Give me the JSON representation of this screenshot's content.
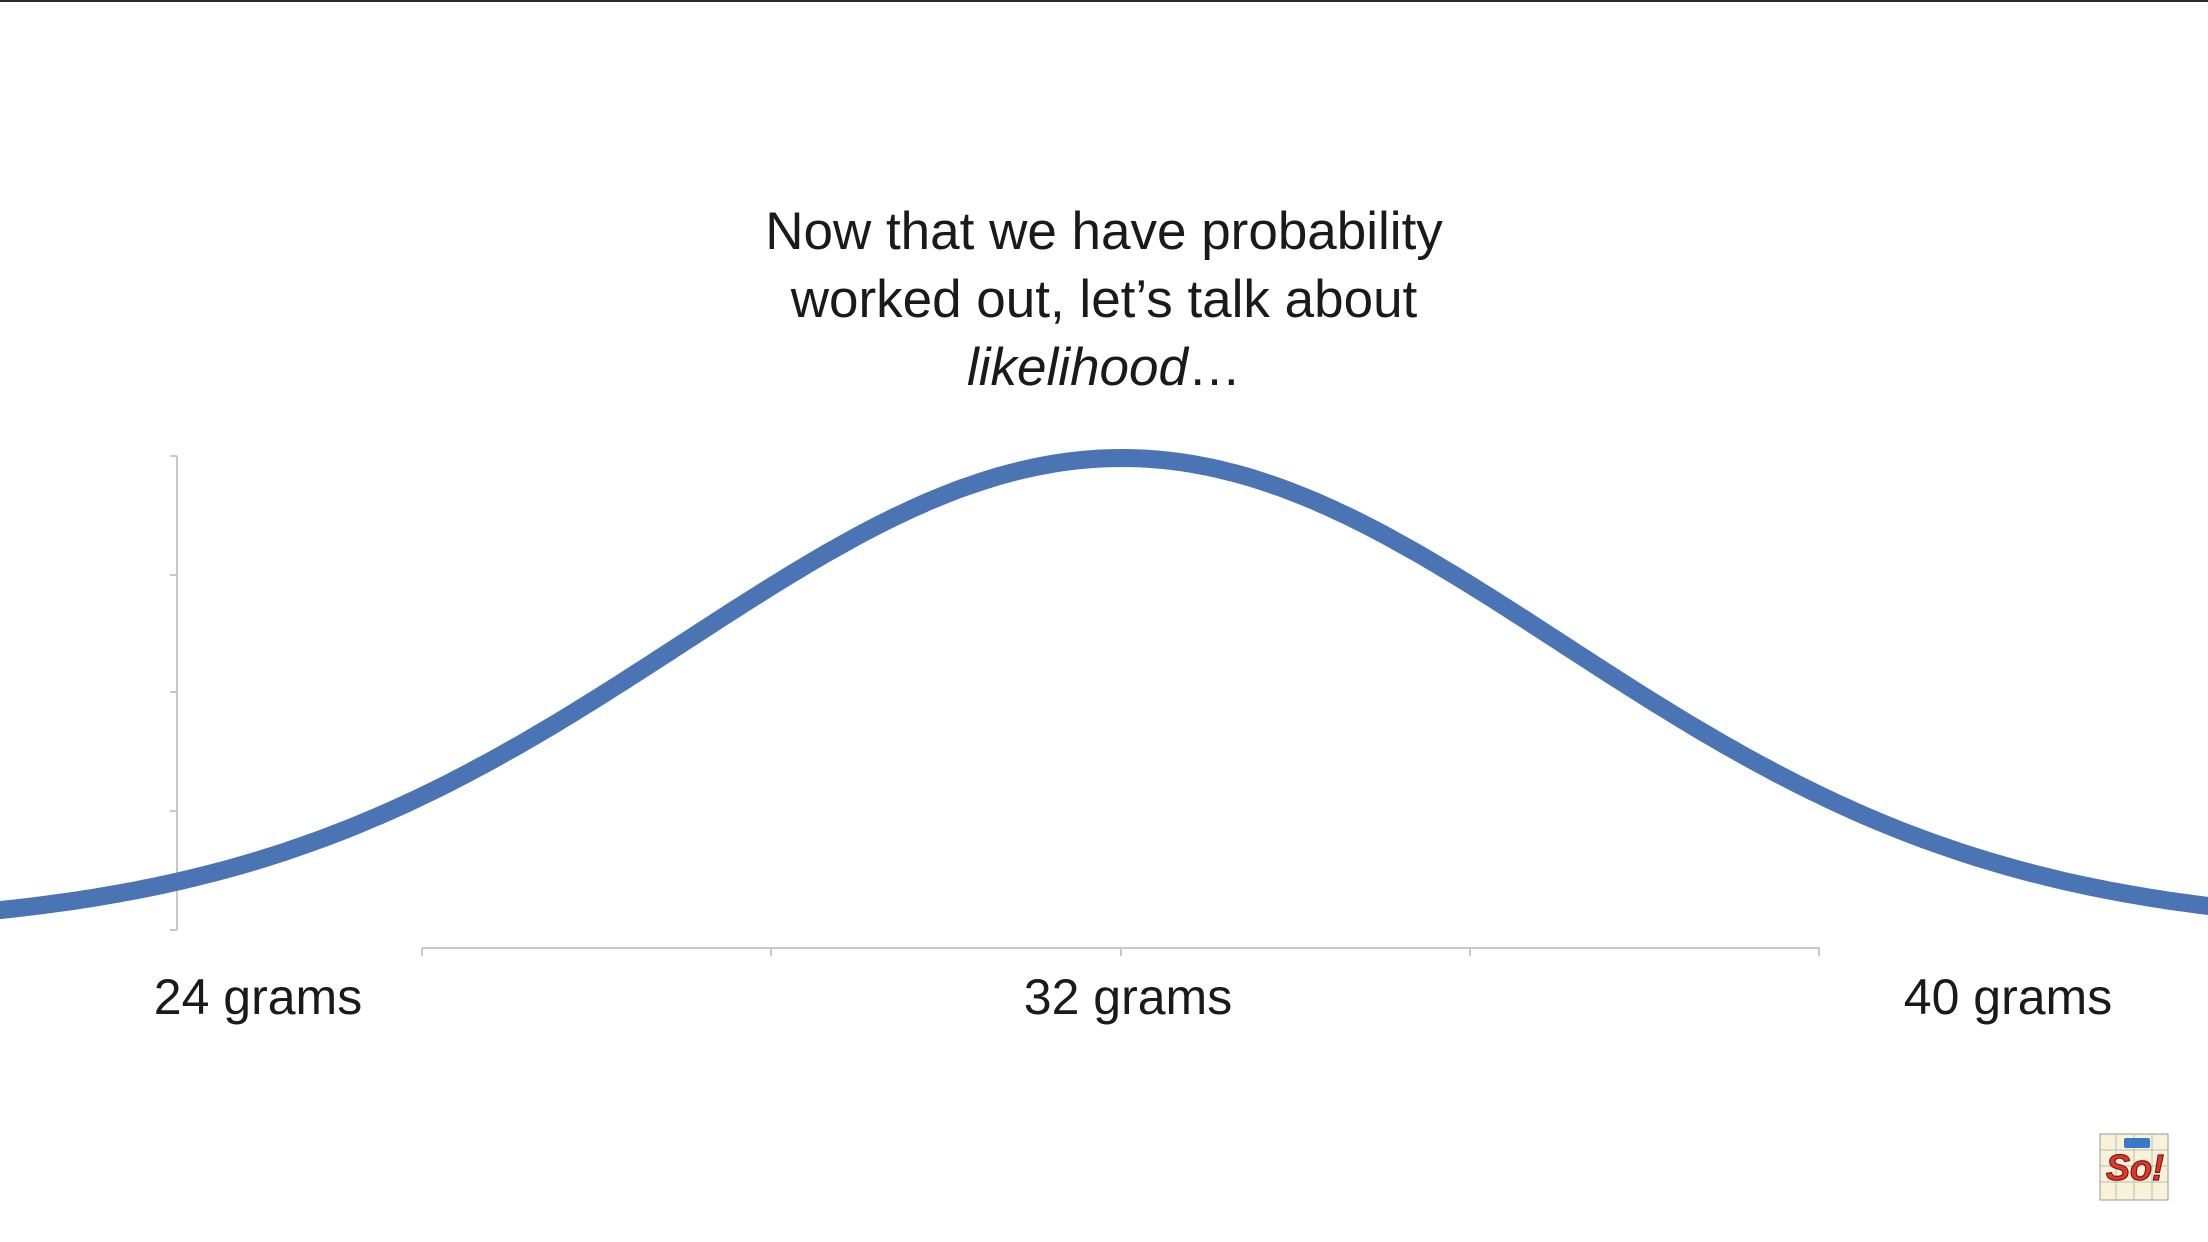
{
  "heading": {
    "line1": "Now that we have probability",
    "line2": "worked out, let’s talk about",
    "line3_italic": "likelihood",
    "line3_suffix": "…"
  },
  "chart_data": {
    "type": "line",
    "title": "",
    "xlabel": "",
    "ylabel": "",
    "distribution": "normal",
    "mean": 32,
    "sd": 2,
    "xlim": [
      24,
      40
    ],
    "x_tick_labels": [
      {
        "value": 24,
        "label": "24 grams"
      },
      {
        "value": 32,
        "label": "32 grams"
      },
      {
        "value": 40,
        "label": "40 grams"
      }
    ],
    "x_minor_ticks": [
      26,
      29,
      32,
      35,
      38
    ],
    "grid": false,
    "series": [
      {
        "color": "#4a74b4"
      }
    ]
  },
  "colors": {
    "curve": "#4a74b4",
    "axis": "#c8c8c8",
    "text": "#1a1a1a"
  },
  "logo": {
    "text": "So!"
  }
}
